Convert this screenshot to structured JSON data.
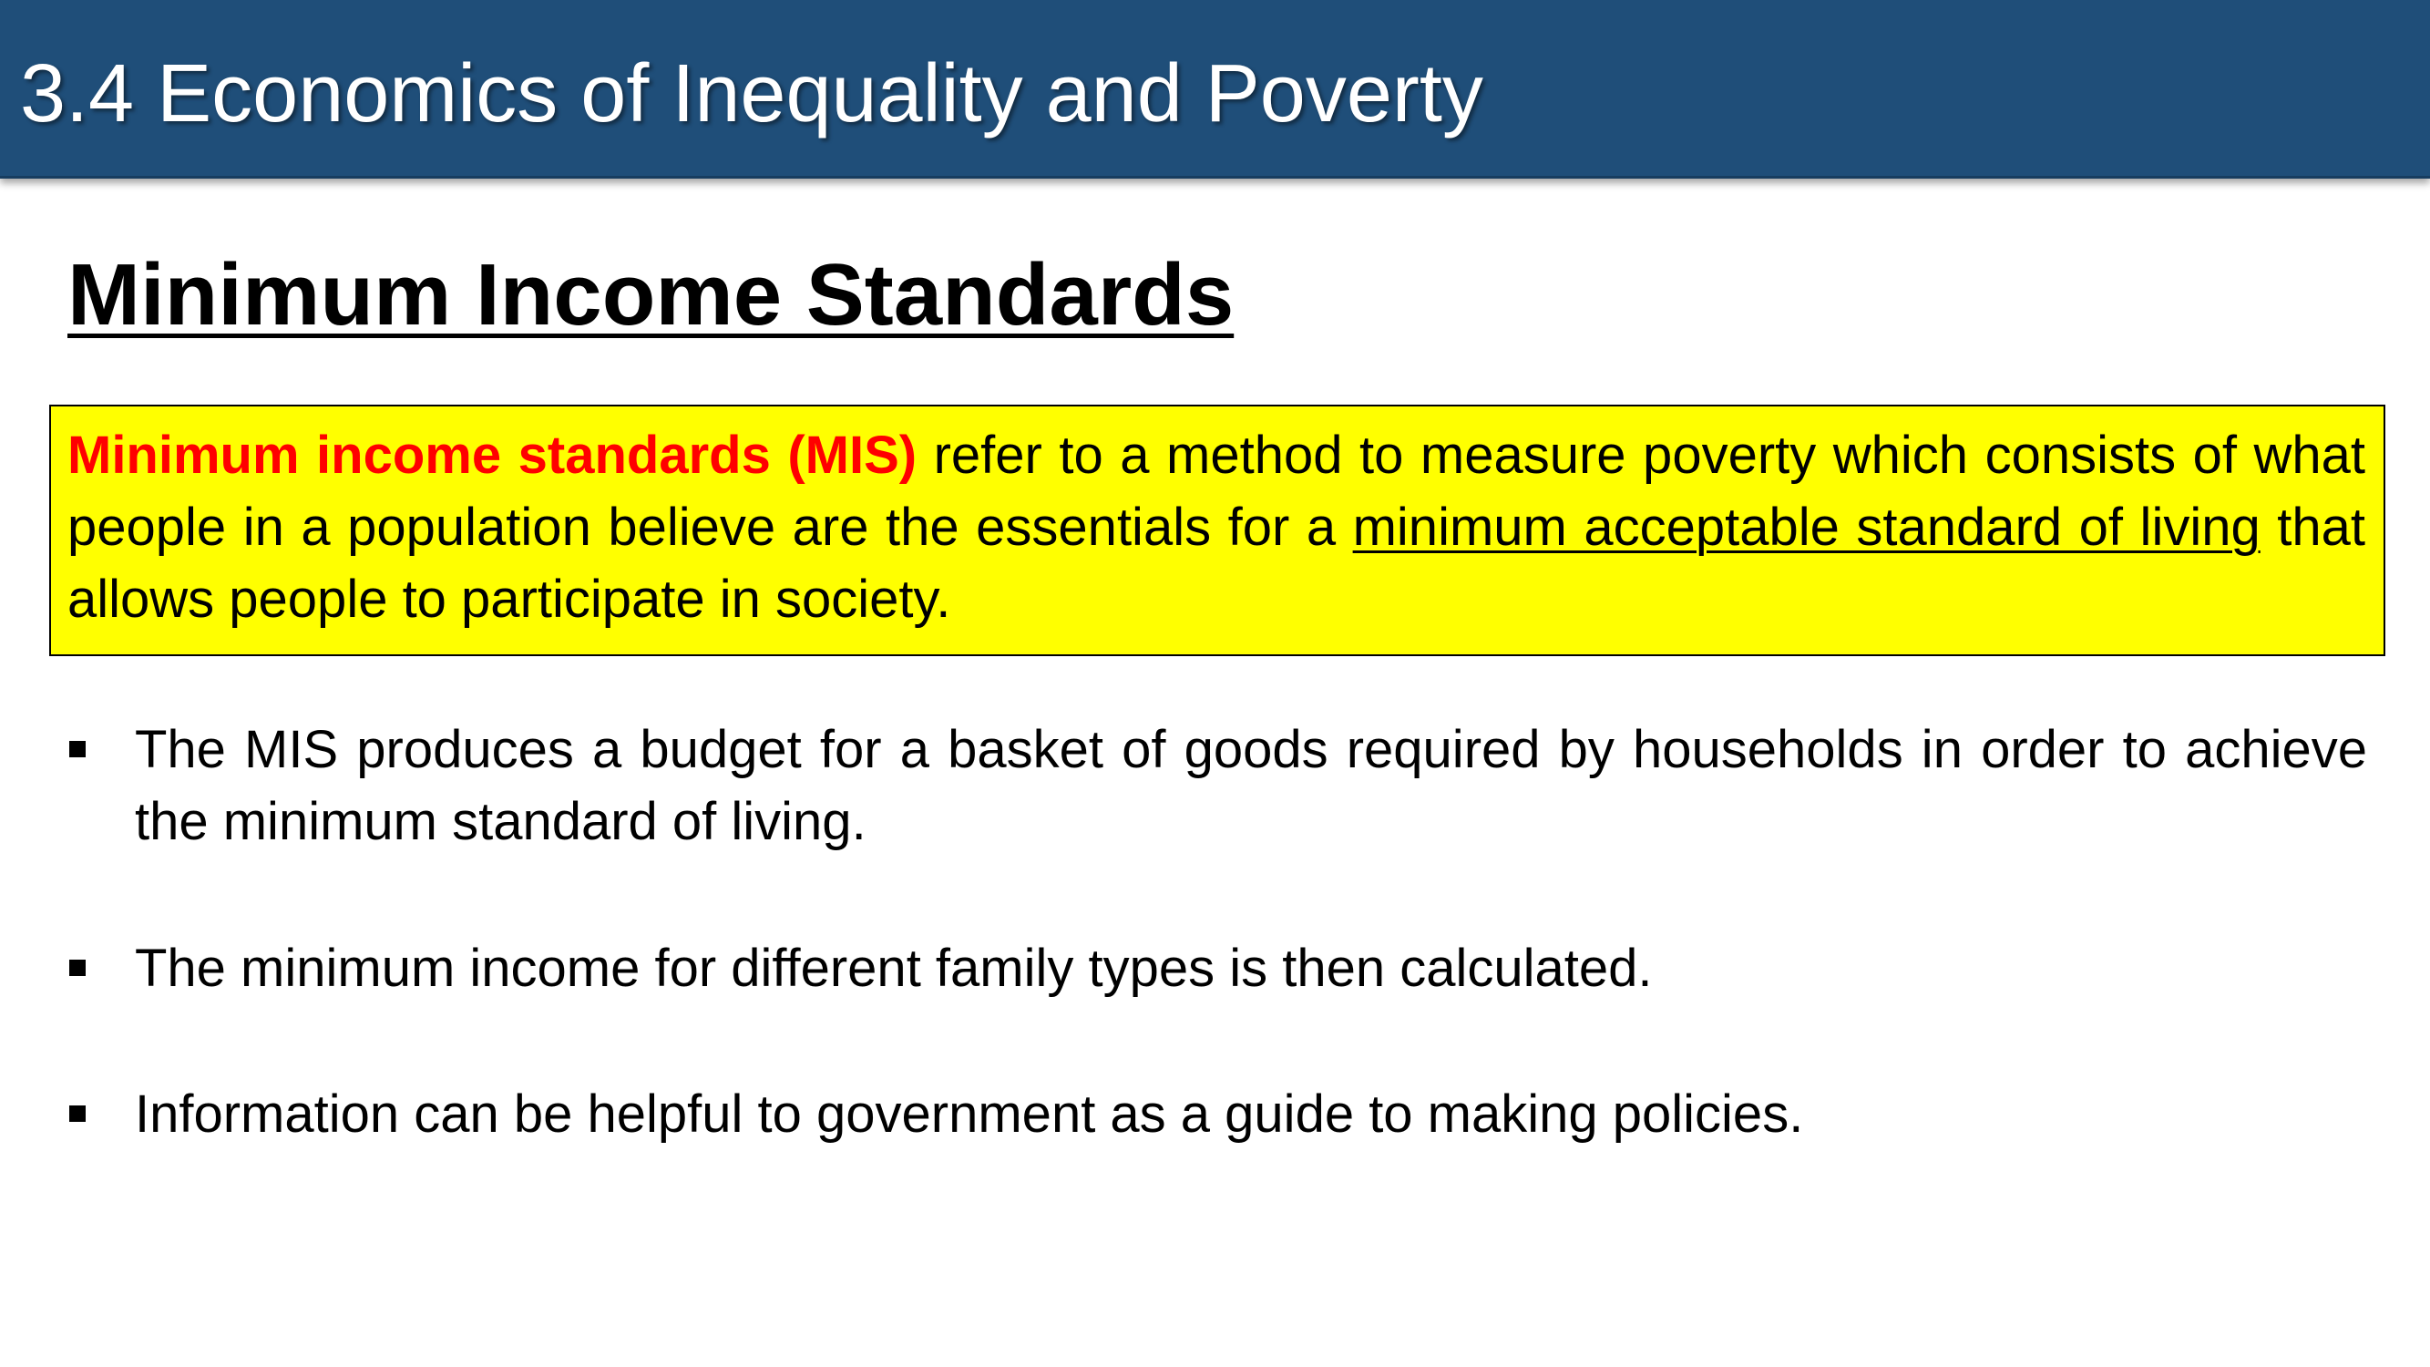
{
  "header": {
    "title": "3.4 Economics of Inequality and Poverty"
  },
  "slide": {
    "title": "Minimum Income Standards"
  },
  "definition": {
    "term": "Minimum income standards (MIS)",
    "text_before_underline": " refer to a method to measure poverty which consists of what people in a population believe are the essentials for a ",
    "underlined_text": "minimum acceptable standard of living",
    "text_after_underline": " that allows people to participate in society."
  },
  "bullets": [
    "The MIS produces a budget for a basket of goods required by households in order to achieve the minimum standard of living.",
    "The minimum income for different family types is then calculated.",
    "Information can be helpful to government as a guide to making policies."
  ],
  "colors": {
    "header_background": "#1f4e79",
    "header_text": "#ffffff",
    "highlight_box": "#ffff00",
    "term_text": "#ff0000"
  }
}
